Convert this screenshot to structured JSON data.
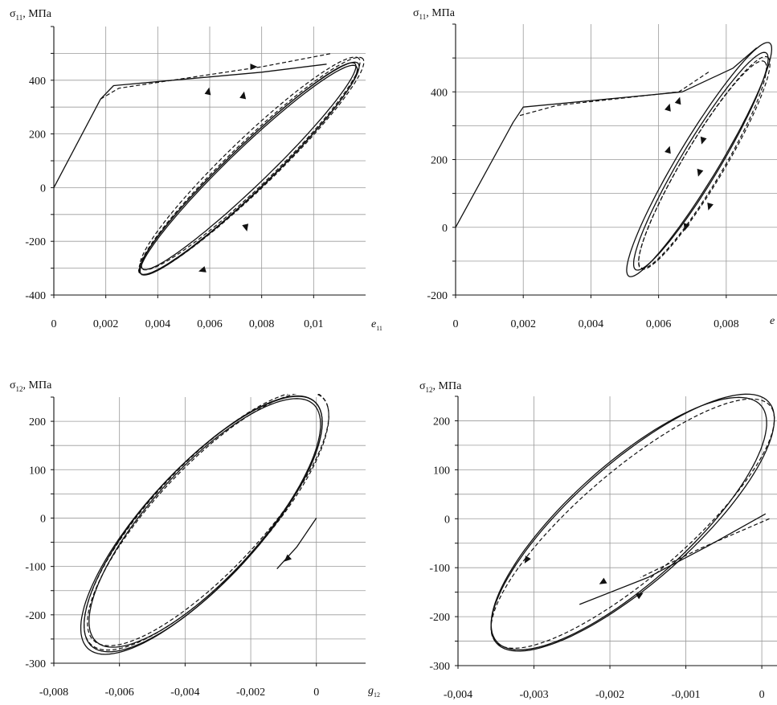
{
  "chart_data": [
    {
      "type": "line",
      "id": "p1",
      "ylabel": "σ",
      "ylabel_sub": "11",
      "ylabel_unit": ", МПа",
      "xlabel": "e",
      "xlabel_sub": "11",
      "xlim": [
        0,
        0.012
      ],
      "ylim": [
        -400,
        600
      ],
      "x_ticks": [
        0,
        0.002,
        0.004,
        0.006,
        0.008,
        0.01
      ],
      "x_tick_labels": [
        "0",
        "0,002",
        "0,004",
        "0,006",
        "0,008",
        "0,01"
      ],
      "y_ticks": [
        -400,
        -200,
        0,
        200,
        400
      ],
      "y_tick_labels": [
        "-400",
        "-200",
        "0",
        "200",
        "400"
      ],
      "x_grid_lines": [
        0.002,
        0.004,
        0.006,
        0.008,
        0.01
      ],
      "y_grid_lines": [
        -300,
        -200,
        -100,
        0,
        100,
        200,
        300,
        400,
        500
      ],
      "grid": true,
      "series": [
        {
          "style": "solid",
          "loading_path": [
            [
              0,
              0
            ],
            [
              0.0018,
              330
            ],
            [
              0.0023,
              380
            ],
            [
              0.008,
              430
            ],
            [
              0.0105,
              460
            ]
          ],
          "loops": [
            {
              "cx": 0.0075,
              "cy": 65,
              "ax": 0.00415,
              "ay": 0.00195,
              "by": 1.5,
              "t0": 0.0,
              "turns": 1.0
            },
            {
              "cx": 0.00752,
              "cy": 72,
              "ax": 0.0042,
              "ay": 0.00205,
              "by": 0.0,
              "t0": 0.0,
              "turns": 1.0
            },
            {
              "cx": 0.0075,
              "cy": 80,
              "ax": 0.0041,
              "ay": 0.00185,
              "by": -1.0,
              "t0": 0.0,
              "turns": 1.0
            }
          ]
        },
        {
          "style": "dashed",
          "loading_path": [
            [
              0.0018,
              330
            ],
            [
              0.0025,
              370
            ],
            [
              0.008,
              450
            ],
            [
              0.0107,
              500
            ]
          ],
          "loops": [
            {
              "cx": 0.0076,
              "cy": 80,
              "ax": 0.0043,
              "ay": 0.00215,
              "by": 3.0,
              "t0": 0.0,
              "turns": 1.0
            },
            {
              "cx": 0.00755,
              "cy": 90,
              "ax": 0.0042,
              "ay": 0.0022,
              "by": 1.0,
              "t0": 0.0,
              "turns": 1.0
            }
          ]
        }
      ],
      "arrows": [
        [
          0.0077,
          450,
          1,
          0
        ],
        [
          0.0073,
          345,
          0.2,
          1
        ],
        [
          0.0074,
          -150,
          0.25,
          -1
        ],
        [
          0.0057,
          -308,
          -1,
          -0.3
        ],
        [
          0.00595,
          360,
          0.2,
          1
        ]
      ]
    },
    {
      "type": "line",
      "id": "p2",
      "ylabel": "σ",
      "ylabel_sub": "11",
      "ylabel_unit": ", МПа",
      "xlabel": "e",
      "xlabel_sub": "",
      "xlim": [
        0,
        0.0095
      ],
      "ylim": [
        -200,
        600
      ],
      "x_ticks": [
        0,
        0.002,
        0.004,
        0.006,
        0.008
      ],
      "x_tick_labels": [
        "0",
        "0,002",
        "0,004",
        "0,006",
        "0,008"
      ],
      "y_ticks": [
        -200,
        0,
        200,
        400
      ],
      "y_tick_labels": [
        "-200",
        "0",
        "200",
        "400"
      ],
      "x_grid_lines": [
        0.002,
        0.004,
        0.006,
        0.008
      ],
      "y_grid_lines": [
        -100,
        0,
        100,
        200,
        300,
        400,
        500
      ],
      "grid": true,
      "series": [
        {
          "style": "solid",
          "loading_path": [
            [
              0,
              0
            ],
            [
              0.0017,
              310
            ],
            [
              0.002,
              355
            ],
            [
              0.0067,
              400
            ],
            [
              0.0082,
              470
            ],
            [
              0.0089,
              530
            ]
          ],
          "loops": [
            {
              "cx": 0.00725,
              "cy": 195,
              "ax": 0.00195,
              "ay": 0.00155,
              "by": -6,
              "t0": 0.0,
              "turns": 1.0
            },
            {
              "cx": 0.0072,
              "cy": 200,
              "ax": 0.0021,
              "ay": 0.0017,
              "by": -7,
              "t0": 0.0,
              "turns": 1.0
            }
          ]
        },
        {
          "style": "dashed",
          "loading_path": [
            [
              0.0019,
              330
            ],
            [
              0.003,
              360
            ],
            [
              0.0066,
              400
            ],
            [
              0.0075,
              460
            ]
          ],
          "loops": [
            {
              "cx": 0.00735,
              "cy": 190,
              "ax": 0.0019,
              "ay": 0.0016,
              "by": -5,
              "t0": 0.0,
              "turns": 1.0
            },
            {
              "cx": 0.0073,
              "cy": 185,
              "ax": 0.00185,
              "ay": 0.0015,
              "by": -2,
              "t0": 0.0,
              "turns": 1.0
            }
          ]
        }
      ],
      "arrows": [
        [
          0.0063,
          355,
          0.3,
          1
        ],
        [
          0.0063,
          230,
          0.3,
          1
        ],
        [
          0.0072,
          160,
          -0.3,
          -1
        ],
        [
          0.0075,
          60,
          -0.3,
          -1
        ],
        [
          0.0073,
          255,
          -0.3,
          -1
        ],
        [
          0.0066,
          375,
          0.3,
          1
        ],
        [
          0.0068,
          0,
          -0.3,
          -1
        ]
      ]
    },
    {
      "type": "line",
      "id": "p3",
      "ylabel": "σ",
      "ylabel_sub": "12",
      "ylabel_unit": ", МПа",
      "xlabel": "g",
      "xlabel_sub": "12",
      "xlim": [
        -0.008,
        0.0015
      ],
      "ylim": [
        -300,
        250
      ],
      "x_ticks": [
        -0.008,
        -0.006,
        -0.004,
        -0.002,
        0
      ],
      "x_tick_labels": [
        "-0,008",
        "-0,006",
        "-0,004",
        "-0,002",
        "0"
      ],
      "y_ticks": [
        -300,
        -200,
        -100,
        0,
        100,
        200
      ],
      "y_tick_labels": [
        "-300",
        "-200",
        "-100",
        "0",
        "100",
        "200"
      ],
      "x_grid_lines": [
        -0.006,
        -0.004,
        -0.002,
        0
      ],
      "y_grid_lines": [
        -250,
        -200,
        -150,
        -100,
        -50,
        0,
        50,
        100,
        150,
        200
      ],
      "grid": true,
      "series": [
        {
          "style": "solid",
          "loading_path": [
            [
              0,
              0
            ],
            [
              -0.0006,
              -60
            ],
            [
              -0.0012,
              -105
            ]
          ],
          "loops": [
            {
              "cx": -0.00345,
              "cy": -12,
              "ax": 0.0036,
              "ay": 0.0018,
              "by": 68,
              "t0": 0.0,
              "turns": 1.0
            },
            {
              "cx": -0.0035,
              "cy": -15,
              "ax": 0.00365,
              "ay": 0.00185,
              "by": 66,
              "t0": 0.0,
              "turns": 1.0
            },
            {
              "cx": -0.0034,
              "cy": -10,
              "ax": 0.0035,
              "ay": 0.00175,
              "by": 64,
              "t0": 0.0,
              "turns": 1.0
            }
          ]
        },
        {
          "style": "dashed",
          "loading_path": [],
          "loops": [
            {
              "cx": -0.00335,
              "cy": -5,
              "ax": 0.0037,
              "ay": 0.0019,
              "by": 62,
              "t0": 0.0,
              "turns": 1.0
            },
            {
              "cx": -0.0033,
              "cy": -2,
              "ax": 0.00365,
              "ay": 0.0018,
              "by": 58,
              "t0": 0.0,
              "turns": 1.0
            }
          ]
        }
      ],
      "arrows": [
        [
          -0.0009,
          -85,
          -1,
          -0.9
        ]
      ]
    },
    {
      "type": "line",
      "id": "p4",
      "ylabel": "σ",
      "ylabel_sub": "12",
      "ylabel_unit": ", МПа",
      "xlabel": "",
      "xlabel_sub": "",
      "xlim": [
        -0.004,
        0.0002
      ],
      "ylim": [
        -300,
        250
      ],
      "x_ticks": [
        -0.004,
        -0.003,
        -0.002,
        -0.001,
        0
      ],
      "x_tick_labels": [
        "-0,004",
        "-0,003",
        "-0,002",
        "-0,001",
        "0"
      ],
      "y_ticks": [
        -300,
        -200,
        -100,
        0,
        100,
        200
      ],
      "y_tick_labels": [
        "-300",
        "-200",
        "-100",
        "0",
        "100",
        "200"
      ],
      "x_grid_lines": [
        -0.003,
        -0.002,
        -0.001,
        0
      ],
      "y_grid_lines": [
        -250,
        -200,
        -150,
        -100,
        -50,
        0,
        50,
        100,
        150,
        200
      ],
      "grid": true,
      "series": [
        {
          "style": "solid",
          "loading_path": [
            [
              5e-05,
              10
            ],
            [
              -0.0007,
              -55
            ],
            [
              -0.0015,
              -120
            ],
            [
              -0.0024,
              -175
            ]
          ],
          "loops": [
            {
              "cx": -0.00175,
              "cy": -10,
              "ax": 0.0018,
              "ay": 0.0009,
              "by": 75,
              "t0": 0.0,
              "turns": 1.0
            },
            {
              "cx": -0.0017,
              "cy": -8,
              "ax": 0.00185,
              "ay": 0.00095,
              "by": 72,
              "t0": 0.0,
              "turns": 1.0
            }
          ]
        },
        {
          "style": "dashed",
          "loading_path": [
            [
              0.0001,
              0
            ],
            [
              -0.0008,
              -60
            ],
            [
              -0.0016,
              -120
            ]
          ],
          "loops": [
            {
              "cx": -0.0017,
              "cy": -10,
              "ax": 0.00185,
              "ay": 0.00095,
              "by": 55,
              "t0": 0.0,
              "turns": 1.0
            }
          ]
        }
      ],
      "arrows": [
        [
          -0.0031,
          -85,
          -0.6,
          -1
        ],
        [
          -0.0021,
          -130,
          -1,
          -0.6
        ],
        [
          -0.0016,
          -155,
          1,
          0.6
        ]
      ]
    }
  ]
}
